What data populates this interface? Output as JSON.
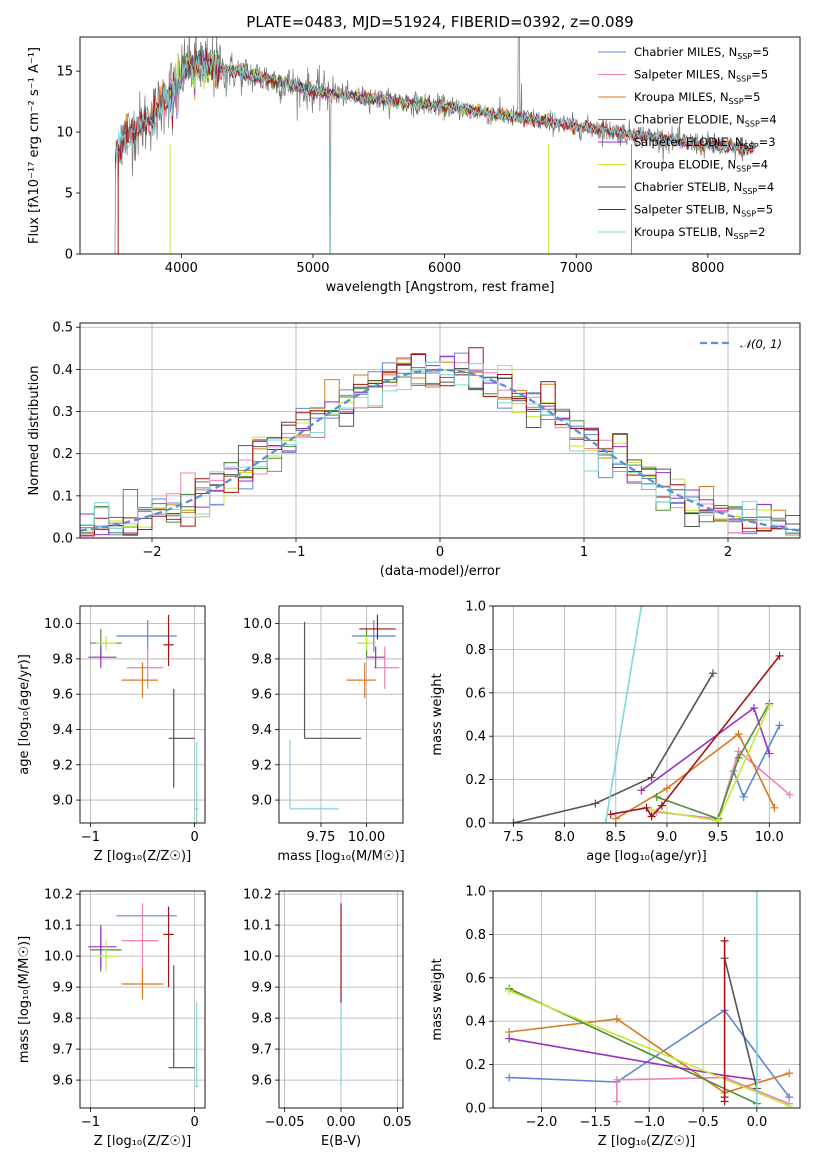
{
  "figure": {
    "title": "PLATE=0483, MJD=51924, FIBERID=0392, z=0.089"
  },
  "colors": {
    "Chabrier MILES": "#5b87d8",
    "Salpeter MILES": "#ec82b6",
    "Kroupa MILES": "#d97a20",
    "Chabrier ELODIE": "#4d8f3a",
    "Salpeter ELODIE": "#9b30c0",
    "Kroupa ELODIE": "#c6e63a",
    "Chabrier STELIB": "#555555",
    "Salpeter STELIB": "#a01515",
    "Kroupa STELIB": "#7fd6dc",
    "normal": "#5b8fd6"
  },
  "chart_data": [
    {
      "id": "spectrum",
      "type": "line",
      "title": "PLATE=0483, MJD=51924, FIBERID=0392, z=0.089",
      "xlabel": "wavelength [Angstrom, rest frame]",
      "ylabel": "Flux [fλ10⁻¹⁷ erg cm⁻² s⁻¹ A⁻¹]",
      "xlim": [
        3230,
        8700
      ],
      "ylim": [
        0,
        17.8
      ],
      "xticks": [
        "4000",
        "5000",
        "6000",
        "7000",
        "8000"
      ],
      "yticks": [
        "0",
        "5",
        "10",
        "15"
      ],
      "grid": false,
      "legend_position": "upper right",
      "legend": [
        {
          "label": "Chabrier MILES, N",
          "sub": "SSP",
          "tail": "=5"
        },
        {
          "label": "Salpeter MILES, N",
          "sub": "SSP",
          "tail": "=5"
        },
        {
          "label": "Kroupa MILES, N",
          "sub": "SSP",
          "tail": "=5"
        },
        {
          "label": "Chabrier ELODIE, N",
          "sub": "SSP",
          "tail": "=4"
        },
        {
          "label": "Salpeter ELODIE, N",
          "sub": "SSP",
          "tail": "=3"
        },
        {
          "label": "Kroupa ELODIE, N",
          "sub": "SSP",
          "tail": "=4"
        },
        {
          "label": "Chabrier STELIB, N",
          "sub": "SSP",
          "tail": "=4"
        },
        {
          "label": "Salpeter STELIB, N",
          "sub": "SSP",
          "tail": "=5"
        },
        {
          "label": "Kroupa STELIB, N",
          "sub": "SSP",
          "tail": "=2"
        }
      ],
      "continuum_x": [
        3480,
        3600,
        3800,
        3950,
        4050,
        4300,
        4600,
        5000,
        5400,
        6000,
        6500,
        7000,
        7500,
        8000,
        8300
      ],
      "continuum_y": [
        8.5,
        9.8,
        11.5,
        14.0,
        15.6,
        15.2,
        14.5,
        13.4,
        12.8,
        12.1,
        11.3,
        10.5,
        9.7,
        8.9,
        8.6
      ]
    },
    {
      "id": "residuals",
      "type": "histogram",
      "xlabel": "(data-model)/error",
      "ylabel": "Normed distribution",
      "xlim": [
        -2.5,
        2.5
      ],
      "ylim": [
        0,
        0.51
      ],
      "xticks": [
        "−2",
        "−1",
        "0",
        "1",
        "2"
      ],
      "yticks": [
        "0.0",
        "0.1",
        "0.2",
        "0.3",
        "0.4",
        "0.5"
      ],
      "grid": true,
      "legend": "𝒩(0, 1)",
      "legend_position": "upper right",
      "bin_width": 0.1
    },
    {
      "id": "z-age",
      "type": "errorbar",
      "xlabel": "Z [log₁₀(Z/Z☉)]",
      "ylabel": "age  [log₁₀(age/yr)]",
      "xlim": [
        -1.1,
        0.1
      ],
      "ylim": [
        8.87,
        10.1
      ],
      "xticks": [
        "−1",
        "0"
      ],
      "yticks": [
        "9.0",
        "9.2",
        "9.4",
        "9.6",
        "9.8",
        "10.0"
      ],
      "grid": true
    },
    {
      "id": "mass-age",
      "type": "errorbar",
      "xlabel": "mass [log₁₀(M/M☉)]",
      "ylabel": "",
      "xlim": [
        9.52,
        10.2
      ],
      "ylim": [
        8.87,
        10.1
      ],
      "xticks": [
        "9.75",
        "10.00"
      ],
      "yticks": [
        "9.0",
        "9.2",
        "9.4",
        "9.6",
        "9.8",
        "10.0"
      ],
      "grid": true
    },
    {
      "id": "age-weight",
      "type": "line",
      "xlabel": "age  [log₁₀(age/yr)]",
      "ylabel": "mass weight",
      "xlim": [
        7.3,
        10.3
      ],
      "ylim": [
        0,
        1
      ],
      "xticks": [
        "7.5",
        "8.0",
        "8.5",
        "9.0",
        "9.5",
        "10.0"
      ],
      "yticks": [
        "0.0",
        "0.2",
        "0.4",
        "0.6",
        "0.8",
        "1.0"
      ],
      "grid": true,
      "series": [
        {
          "key": "Chabrier MILES",
          "x": [
            9.65,
            9.75,
            10.1
          ],
          "y": [
            0.24,
            0.12,
            0.45
          ]
        },
        {
          "key": "Salpeter MILES",
          "x": [
            8.9,
            9.5,
            9.7,
            10.2
          ],
          "y": [
            0.05,
            0.02,
            0.33,
            0.13
          ]
        },
        {
          "key": "Kroupa MILES",
          "x": [
            8.5,
            9.0,
            9.7,
            10.05
          ],
          "y": [
            0.02,
            0.16,
            0.41,
            0.07
          ]
        },
        {
          "key": "Chabrier ELODIE",
          "x": [
            8.9,
            9.5,
            9.7,
            10.0
          ],
          "y": [
            0.12,
            0.02,
            0.3,
            0.55
          ]
        },
        {
          "key": "Salpeter ELODIE",
          "x": [
            8.75,
            9.85,
            10.0
          ],
          "y": [
            0.15,
            0.53,
            0.32
          ]
        },
        {
          "key": "Kroupa ELODIE",
          "x": [
            8.85,
            9.5,
            10.0
          ],
          "y": [
            0.06,
            0.01,
            0.54
          ]
        },
        {
          "key": "Chabrier STELIB",
          "x": [
            7.5,
            8.3,
            8.85,
            9.45
          ],
          "y": [
            0.0,
            0.09,
            0.21,
            0.69
          ]
        },
        {
          "key": "Salpeter STELIB",
          "x": [
            8.45,
            8.8,
            8.85,
            8.95,
            10.1
          ],
          "y": [
            0.04,
            0.07,
            0.03,
            0.08,
            0.77
          ]
        },
        {
          "key": "Kroupa STELIB",
          "x": [
            8.4,
            8.75
          ],
          "y": [
            0.0,
            1.0
          ]
        }
      ]
    },
    {
      "id": "z-mass",
      "type": "errorbar",
      "xlabel": "Z [log₁₀(Z/Z☉)]",
      "ylabel": "mass [log₁₀(M/M☉)]",
      "xlim": [
        -1.1,
        0.1
      ],
      "ylim": [
        9.51,
        10.21
      ],
      "xticks": [
        "−1",
        "0"
      ],
      "yticks": [
        "9.6",
        "9.7",
        "9.8",
        "9.9",
        "10.0",
        "10.1",
        "10.2"
      ],
      "grid": true
    },
    {
      "id": "ebv-mass",
      "type": "errorbar",
      "xlabel": "E(B-V)",
      "ylabel": "",
      "xlim": [
        -0.055,
        0.055
      ],
      "ylim": [
        9.51,
        10.21
      ],
      "xticks": [
        "−0.05",
        "0.00",
        "0.05"
      ],
      "yticks": [
        "9.6",
        "9.7",
        "9.8",
        "9.9",
        "10.0",
        "10.1",
        "10.2"
      ],
      "grid": true
    },
    {
      "id": "z-weight",
      "type": "line",
      "xlabel": "Z [log₁₀(Z/Z☉)]",
      "ylabel": "mass weight",
      "xlim": [
        -2.45,
        0.4
      ],
      "ylim": [
        0,
        1
      ],
      "xticks": [
        "−2.0",
        "−1.5",
        "−1.0",
        "−0.5",
        "0.0"
      ],
      "yticks": [
        "0.0",
        "0.2",
        "0.4",
        "0.6",
        "0.8",
        "1.0"
      ],
      "grid": true,
      "series": [
        {
          "key": "Chabrier MILES",
          "x": [
            -2.3,
            -1.3,
            -0.3,
            0.3
          ],
          "y": [
            0.14,
            0.12,
            0.45,
            0.05
          ]
        },
        {
          "key": "Salpeter MILES",
          "x": [
            -1.3,
            -1.3,
            -0.3,
            0.3
          ],
          "y": [
            0.03,
            0.13,
            0.14,
            0.02
          ]
        },
        {
          "key": "Kroupa MILES",
          "x": [
            -2.3,
            -1.3,
            -0.3,
            0.3
          ],
          "y": [
            0.35,
            0.41,
            0.07,
            0.16
          ]
        },
        {
          "key": "Chabrier ELODIE",
          "x": [
            -2.3,
            0.0
          ],
          "y": [
            0.55,
            0.02
          ]
        },
        {
          "key": "Salpeter ELODIE",
          "x": [
            -2.3,
            -0.3,
            0.0
          ],
          "y": [
            0.32,
            0.15,
            0.13
          ]
        },
        {
          "key": "Kroupa ELODIE",
          "x": [
            -2.3,
            0.3
          ],
          "y": [
            0.54,
            0.01
          ]
        },
        {
          "key": "Chabrier STELIB",
          "x": [
            -0.3,
            0.0
          ],
          "y": [
            0.69,
            0.09
          ]
        },
        {
          "key": "Salpeter STELIB",
          "x": [
            -0.3,
            -0.3,
            -0.3
          ],
          "y": [
            0.77,
            0.05,
            0.03
          ]
        },
        {
          "key": "Kroupa STELIB",
          "x": [
            0.0,
            0.0
          ],
          "y": [
            0.0,
            1.0
          ]
        }
      ]
    }
  ],
  "errorbars_z_age": [
    {
      "key": "Chabrier MILES",
      "x": -0.45,
      "xerr": [
        0.3,
        0.28
      ],
      "y": 9.93,
      "yerr": [
        0.09,
        0.09
      ]
    },
    {
      "key": "Salpeter MILES",
      "x": -0.45,
      "xerr": [
        0.2,
        0.15
      ],
      "y": 9.75,
      "yerr": [
        0.12,
        0.12
      ]
    },
    {
      "key": "Kroupa MILES",
      "x": -0.5,
      "xerr": [
        0.2,
        0.15
      ],
      "y": 9.68,
      "yerr": [
        0.1,
        0.1
      ]
    },
    {
      "key": "Chabrier ELODIE",
      "x": -0.9,
      "xerr": [
        0.1,
        0.2
      ],
      "y": 9.89,
      "yerr": [
        0.08,
        0.08
      ]
    },
    {
      "key": "Salpeter ELODIE",
      "x": -0.9,
      "xerr": [
        0.12,
        0.15
      ],
      "y": 9.81,
      "yerr": [
        0.06,
        0.06
      ]
    },
    {
      "key": "Kroupa ELODIE",
      "x": -0.85,
      "xerr": [
        0.1,
        0.1
      ],
      "y": 9.89,
      "yerr": [
        0.04,
        0.04
      ]
    },
    {
      "key": "Chabrier STELIB",
      "x": -0.2,
      "xerr": [
        0.05,
        0.2
      ],
      "y": 9.35,
      "yerr": [
        0.28,
        0.28
      ]
    },
    {
      "key": "Salpeter STELIB",
      "x": -0.25,
      "xerr": [
        0.05,
        0.05
      ],
      "y": 9.88,
      "yerr": [
        0.12,
        0.17
      ]
    },
    {
      "key": "Kroupa STELIB",
      "x": 0.02,
      "xerr": [
        0.02,
        0.02
      ],
      "y": 8.95,
      "yerr": [
        0.1,
        0.38
      ]
    }
  ],
  "errorbars_mass_age": [
    {
      "key": "Chabrier MILES",
      "x": 10.04,
      "xerr": [
        0.12,
        0.12
      ],
      "y": 9.93,
      "yerr": [
        0.09,
        0.09
      ]
    },
    {
      "key": "Salpeter MILES",
      "x": 10.1,
      "xerr": [
        0.06,
        0.08
      ],
      "y": 9.75,
      "yerr": [
        0.12,
        0.12
      ]
    },
    {
      "key": "Kroupa MILES",
      "x": 9.99,
      "xerr": [
        0.1,
        0.06
      ],
      "y": 9.68,
      "yerr": [
        0.1,
        0.1
      ]
    },
    {
      "key": "Chabrier ELODIE",
      "x": 10.0,
      "xerr": [
        0.05,
        0.05
      ],
      "y": 9.89,
      "yerr": [
        0.08,
        0.08
      ]
    },
    {
      "key": "Salpeter ELODIE",
      "x": 10.05,
      "xerr": [
        0.05,
        0.05
      ],
      "y": 9.81,
      "yerr": [
        0.06,
        0.06
      ]
    },
    {
      "key": "Kroupa ELODIE",
      "x": 10.0,
      "xerr": [
        0.05,
        0.05
      ],
      "y": 9.89,
      "yerr": [
        0.04,
        0.04
      ]
    },
    {
      "key": "Chabrier STELIB",
      "x": 9.66,
      "xerr": [
        0.0,
        0.31
      ],
      "y": 9.35,
      "yerr": [
        0.0,
        0.66
      ]
    },
    {
      "key": "Salpeter STELIB",
      "x": 10.06,
      "xerr": [
        0.1,
        0.1
      ],
      "y": 9.97,
      "yerr": [
        0.06,
        0.08
      ]
    },
    {
      "key": "Kroupa STELIB",
      "x": 9.58,
      "xerr": [
        0.0,
        0.27
      ],
      "y": 8.95,
      "yerr": [
        0.0,
        0.39
      ]
    }
  ],
  "errorbars_z_mass": [
    {
      "key": "Chabrier MILES",
      "x": -0.45,
      "xerr": [
        0.3,
        0.28
      ],
      "y": 10.13,
      "yerr": [
        0.0,
        0.0
      ]
    },
    {
      "key": "Salpeter MILES",
      "x": -0.5,
      "xerr": [
        0.2,
        0.15
      ],
      "y": 10.05,
      "yerr": [
        0.12,
        0.12
      ]
    },
    {
      "key": "Kroupa MILES",
      "x": -0.5,
      "xerr": [
        0.2,
        0.2
      ],
      "y": 9.91,
      "yerr": [
        0.05,
        0.05
      ]
    },
    {
      "key": "Chabrier ELODIE",
      "x": -0.9,
      "xerr": [
        0.1,
        0.2
      ],
      "y": 10.02,
      "yerr": [
        0.07,
        0.07
      ]
    },
    {
      "key": "Salpeter ELODIE",
      "x": -0.9,
      "xerr": [
        0.12,
        0.15
      ],
      "y": 10.03,
      "yerr": [
        0.07,
        0.07
      ]
    },
    {
      "key": "Kroupa ELODIE",
      "x": -0.85,
      "xerr": [
        0.1,
        0.1
      ],
      "y": 10.0,
      "yerr": [
        0.05,
        0.05
      ]
    },
    {
      "key": "Chabrier STELIB",
      "x": -0.2,
      "xerr": [
        0.05,
        0.2
      ],
      "y": 9.64,
      "yerr": [
        0.0,
        0.33
      ]
    },
    {
      "key": "Salpeter STELIB",
      "x": -0.25,
      "xerr": [
        0.05,
        0.05
      ],
      "y": 10.07,
      "yerr": [
        0.17,
        0.09
      ]
    },
    {
      "key": "Kroupa STELIB",
      "x": 0.02,
      "xerr": [
        0.02,
        0.02
      ],
      "y": 9.58,
      "yerr": [
        0.0,
        0.27
      ]
    }
  ],
  "errorbars_ebv_mass": [
    {
      "key": "Kroupa STELIB",
      "x": 0.0,
      "xerr": [
        0.0,
        0.0
      ],
      "y": 9.58,
      "yerr": [
        0.0,
        0.28
      ]
    },
    {
      "key": "Salpeter STELIB",
      "x": 0.0,
      "xerr": [
        0.0,
        0.0
      ],
      "y": 10.07,
      "yerr": [
        0.22,
        0.1
      ]
    }
  ]
}
